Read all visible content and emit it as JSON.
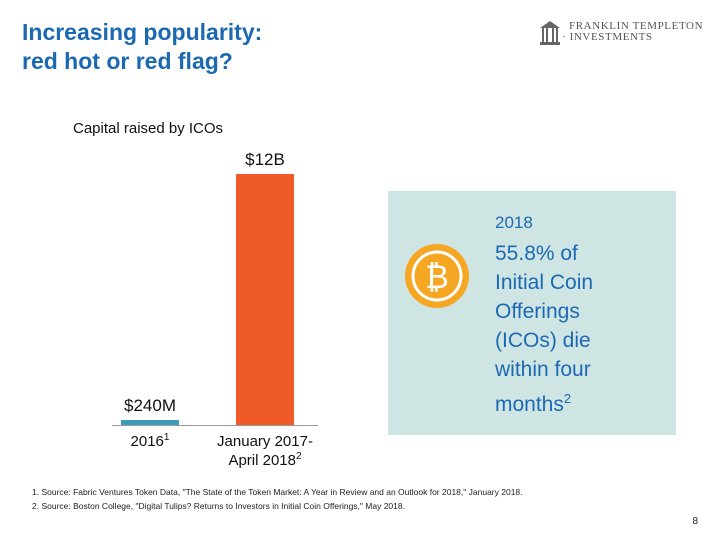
{
  "slide": {
    "title_line1": "Increasing popularity:",
    "title_line2": "red hot or red flag?",
    "page_number": "8"
  },
  "logo": {
    "line1": "FRANKLIN TEMPLETON",
    "line2": "INVESTMENTS"
  },
  "chart_data": {
    "type": "bar",
    "title": "Capital raised by ICOs",
    "categories": [
      "2016",
      "January 2017-April 2018"
    ],
    "category_lines": [
      [
        "2016"
      ],
      [
        "January 2017-",
        "April 2018"
      ]
    ],
    "footnote_markers": [
      "1",
      "2"
    ],
    "values": [
      0.24,
      12
    ],
    "units": "billion USD",
    "data_labels": [
      "$240M",
      "$12B"
    ],
    "colors": [
      "#3a9bbb",
      "#f05a28"
    ],
    "xlabel": "",
    "ylabel": "",
    "ylim": [
      0,
      12
    ],
    "grid": false,
    "legend": "none"
  },
  "callout": {
    "year": "2018",
    "text_lines": [
      "55.8% of",
      "Initial Coin",
      "Offerings",
      "(ICOs) die",
      "within four",
      "months"
    ],
    "footnote_marker": "2",
    "icon": "bitcoin-icon",
    "coin_symbol": "₿"
  },
  "footnotes": [
    "1. Source: Fabric Ventures Token Data, \"The State of the Token Market: A Year in Review and an Outlook for 2018,\" January 2018.",
    "2. Source: Boston College, \"Digital Tulips? Returns to Investors in Initial Coin Offerings,\" May 2018."
  ]
}
